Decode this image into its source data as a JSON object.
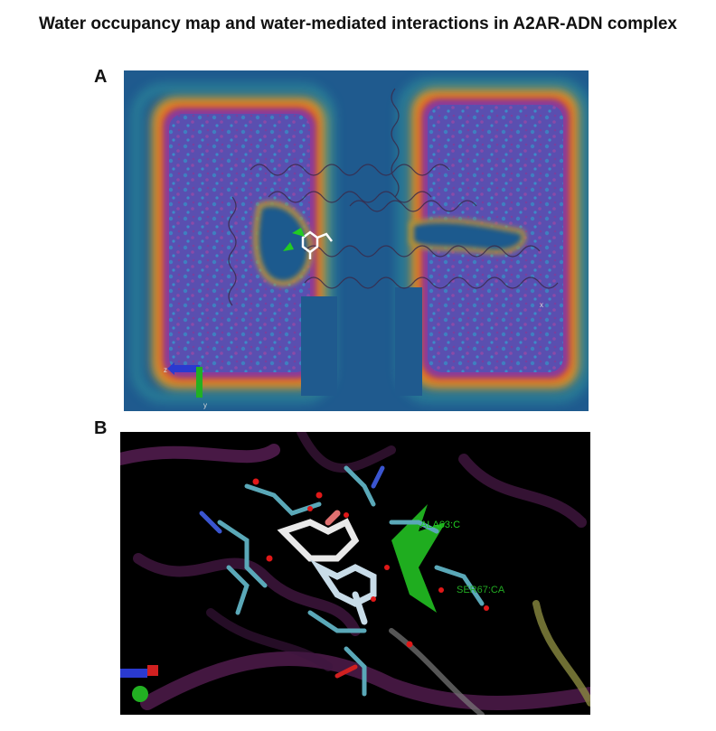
{
  "figure": {
    "title": "Water occupancy map and water-mediated interactions in A2AR-ADN complex",
    "panel_a": {
      "label": "A",
      "axis_z": "z",
      "axis_y": "y",
      "axis_x": "x"
    },
    "panel_b": {
      "label": "B",
      "residue_1": "ALA63:C",
      "residue_2": "SER67:CA"
    }
  },
  "colors": {
    "map_background": "#1f5a8e",
    "occupancy_high": "#6e4bb0",
    "residue_label": "#22cc22",
    "helix": "#6b2a63"
  }
}
